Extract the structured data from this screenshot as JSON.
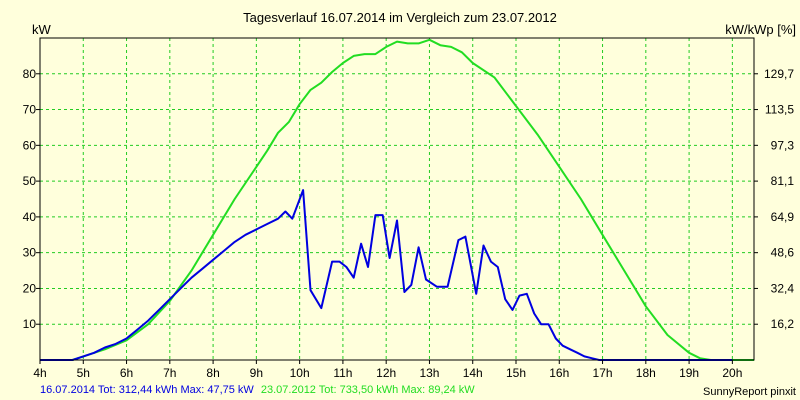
{
  "chart_data": {
    "type": "line",
    "title": "Tagesverlauf 16.07.2014 im Vergleich zum 23.07.2012",
    "ylabel_left": "kW",
    "ylabel_right": "kW/kWp [%]",
    "xlim": [
      4,
      20.5
    ],
    "ylim": [
      0,
      90
    ],
    "x_ticks": [
      {
        "value": 4,
        "label": "4h"
      },
      {
        "value": 5,
        "label": "5h"
      },
      {
        "value": 6,
        "label": "6h"
      },
      {
        "value": 7,
        "label": "7h"
      },
      {
        "value": 8,
        "label": "8h"
      },
      {
        "value": 9,
        "label": "9h"
      },
      {
        "value": 10,
        "label": "10h"
      },
      {
        "value": 11,
        "label": "11h"
      },
      {
        "value": 12,
        "label": "12h"
      },
      {
        "value": 13,
        "label": "13h"
      },
      {
        "value": 14,
        "label": "14h"
      },
      {
        "value": 15,
        "label": "15h"
      },
      {
        "value": 16,
        "label": "16h"
      },
      {
        "value": 17,
        "label": "17h"
      },
      {
        "value": 18,
        "label": "18h"
      },
      {
        "value": 19,
        "label": "19h"
      },
      {
        "value": 20,
        "label": "20h"
      }
    ],
    "y_ticks_left": [
      {
        "value": 10,
        "label": "10"
      },
      {
        "value": 20,
        "label": "20"
      },
      {
        "value": 30,
        "label": "30"
      },
      {
        "value": 40,
        "label": "40"
      },
      {
        "value": 50,
        "label": "50"
      },
      {
        "value": 60,
        "label": "60"
      },
      {
        "value": 70,
        "label": "70"
      },
      {
        "value": 80,
        "label": "80"
      }
    ],
    "y_ticks_right": [
      {
        "value": 10,
        "label": "16,2"
      },
      {
        "value": 20,
        "label": "32,4"
      },
      {
        "value": 30,
        "label": "48,6"
      },
      {
        "value": 40,
        "label": "64,9"
      },
      {
        "value": 50,
        "label": "81,1"
      },
      {
        "value": 60,
        "label": "97,3"
      },
      {
        "value": 70,
        "label": "113,5"
      },
      {
        "value": 80,
        "label": "129,7"
      }
    ],
    "grid": true,
    "series": [
      {
        "id": "2014",
        "color": "#0000e0",
        "x": [
          4.0,
          4.75,
          5.0,
          5.25,
          5.5,
          5.75,
          6.0,
          6.25,
          6.5,
          6.75,
          7.0,
          7.25,
          7.5,
          7.75,
          8.0,
          8.25,
          8.5,
          8.75,
          9.0,
          9.25,
          9.5,
          9.67,
          9.83,
          10.08,
          10.25,
          10.5,
          10.75,
          10.92,
          11.08,
          11.25,
          11.42,
          11.58,
          11.75,
          11.92,
          12.08,
          12.25,
          12.42,
          12.58,
          12.75,
          12.92,
          13.17,
          13.42,
          13.67,
          13.83,
          14.08,
          14.25,
          14.42,
          14.58,
          14.75,
          14.92,
          15.08,
          15.25,
          15.42,
          15.58,
          15.75,
          15.92,
          16.08,
          16.25,
          16.42,
          16.58,
          16.75,
          16.92,
          17.08,
          17.25,
          17.42,
          17.58,
          17.75,
          17.92,
          18.08,
          18.25,
          18.5,
          18.75,
          19.0,
          19.25,
          19.5,
          19.75,
          20.0
        ],
        "y": [
          0,
          0,
          1,
          2,
          3.5,
          4.5,
          6,
          8.5,
          11,
          14,
          17,
          20,
          23,
          25.5,
          28,
          30.5,
          33,
          35,
          36.5,
          38,
          39.5,
          41.5,
          39.5,
          47.5,
          19.5,
          14.5,
          27.5,
          27.5,
          26,
          23,
          32.5,
          26,
          40.5,
          40.5,
          28.5,
          39,
          19,
          21,
          31.5,
          22.5,
          20.5,
          20.5,
          33.5,
          34.5,
          18.5,
          32,
          27.5,
          26,
          17,
          14,
          18,
          18.5,
          13,
          10,
          10,
          6,
          4,
          3,
          2,
          1,
          0.5,
          0,
          0,
          0,
          0,
          0,
          0,
          0,
          0,
          0,
          0,
          0,
          0,
          0,
          0,
          0,
          0
        ]
      },
      {
        "id": "2012",
        "color": "#22dd22",
        "x": [
          4.0,
          4.75,
          5.0,
          5.5,
          6.0,
          6.5,
          7.0,
          7.5,
          8.0,
          8.5,
          9.0,
          9.25,
          9.5,
          9.75,
          10.0,
          10.25,
          10.5,
          10.75,
          11.0,
          11.25,
          11.5,
          11.75,
          12.0,
          12.25,
          12.5,
          12.75,
          13.0,
          13.25,
          13.5,
          13.75,
          14.0,
          14.5,
          15.0,
          15.5,
          16.0,
          16.5,
          17.0,
          17.5,
          18.0,
          18.5,
          19.0,
          19.25,
          19.5,
          19.75,
          20.0,
          20.25,
          20.5
        ],
        "y": [
          0,
          0,
          1,
          3,
          5.5,
          10,
          16.5,
          25,
          35,
          45,
          54,
          58.5,
          63.5,
          66.5,
          71.5,
          75.5,
          77.5,
          80.5,
          83,
          85,
          85.5,
          85.5,
          87.5,
          89,
          88.5,
          88.5,
          89.5,
          88,
          87.5,
          86,
          83,
          79,
          71,
          63,
          54,
          45,
          35,
          25,
          15,
          7,
          2,
          0.5,
          0,
          0,
          0,
          0,
          0
        ]
      }
    ],
    "footer": {
      "series1_label": "16.07.2014 Tot: 312,44 kWh Max: 47,75 kW",
      "series2_label": "23.07.2012 Tot: 733,50 kWh Max: 89,24 kW",
      "credit": "SunnyReport pinxit"
    }
  }
}
